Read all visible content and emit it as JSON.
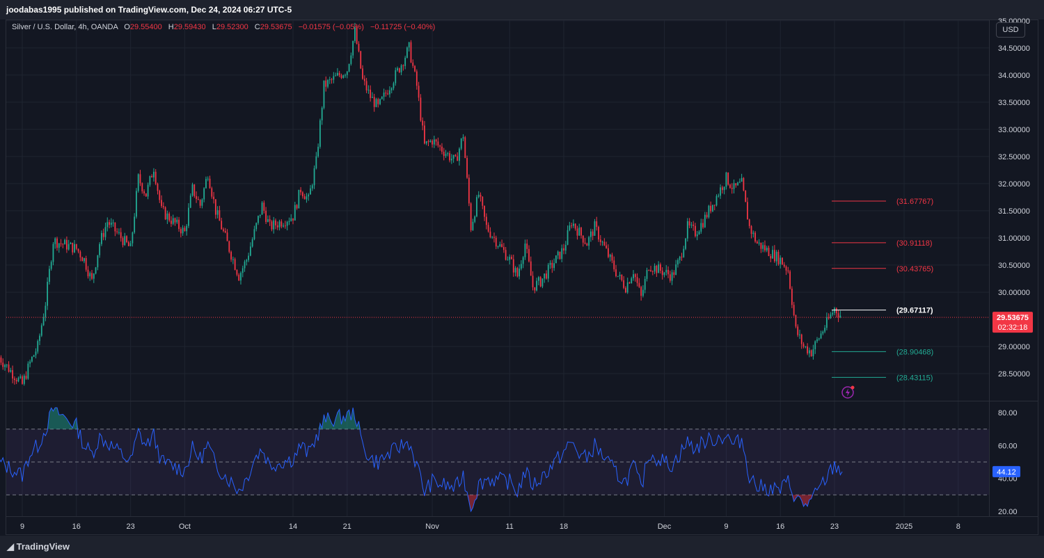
{
  "header": {
    "publisher": "joodabas1995 published on TradingView.com, Dec 24, 2024 06:27 UTC-5"
  },
  "legend": {
    "symbol": "Silver / U.S. Dollar, 4h, OANDA",
    "o_label": "O",
    "o_value": "29.55400",
    "h_label": "H",
    "h_value": "29.59430",
    "l_label": "L",
    "l_value": "29.52300",
    "c_label": "C",
    "c_value": "29.53675",
    "change": "−0.01575 (−0.05%)",
    "change2": "−0.11725 (−0.40%)"
  },
  "currency_button": "USD",
  "footer": {
    "brand": "TradingView"
  },
  "colors": {
    "up": "#22ab94",
    "down": "#f23645",
    "rsi": "#2962ff",
    "background": "#131722"
  },
  "chart_data": {
    "type": "candlestick",
    "price_axis": {
      "ticks": [
        "35.00000",
        "34.50000",
        "34.00000",
        "33.50000",
        "33.00000",
        "32.50000",
        "32.00000",
        "31.50000",
        "31.00000",
        "30.50000",
        "30.00000",
        "29.00000",
        "28.50000"
      ],
      "range": [
        28.0,
        35.1
      ]
    },
    "time_axis": {
      "ticks": [
        "9",
        "16",
        "23",
        "Oct",
        "14",
        "21",
        "Nov",
        "11",
        "18",
        "Dec",
        "9",
        "16",
        "23",
        "2025",
        "8"
      ]
    },
    "last_price": {
      "value": "29.53675",
      "countdown": "02:32:18"
    },
    "levels": [
      {
        "label": "(31.67767)",
        "value": 31.67767,
        "color": "#f23645"
      },
      {
        "label": "(30.91118)",
        "value": 30.91118,
        "color": "#f23645"
      },
      {
        "label": "(30.43765)",
        "value": 30.43765,
        "color": "#f23645"
      },
      {
        "label": "(29.67117)",
        "value": 29.67117,
        "color": "#ffffff"
      },
      {
        "label": "(28.90468)",
        "value": 28.90468,
        "color": "#22ab94"
      },
      {
        "label": "(28.43115)",
        "value": 28.43115,
        "color": "#22ab94"
      }
    ],
    "price_path": [
      [
        "Sep 6",
        28.8
      ],
      [
        "Sep 9",
        28.3
      ],
      [
        "Sep 10",
        28.7
      ],
      [
        "Sep 11",
        29.0
      ],
      [
        "Sep 12",
        29.8
      ],
      [
        "Sep 13",
        30.95
      ],
      [
        "Sep 16",
        30.8
      ],
      [
        "Sep 17",
        30.6
      ],
      [
        "Sep 18",
        30.2
      ],
      [
        "Sep 19",
        30.9
      ],
      [
        "Sep 20",
        31.3
      ],
      [
        "Sep 23",
        30.8
      ],
      [
        "Sep 24",
        32.1
      ],
      [
        "Sep 25",
        31.8
      ],
      [
        "Sep 26",
        32.3
      ],
      [
        "Sep 27",
        31.5
      ],
      [
        "Sep 30",
        31.1
      ],
      [
        "Oct 1",
        31.9
      ],
      [
        "Oct 2",
        31.6
      ],
      [
        "Oct 3",
        32.2
      ],
      [
        "Oct 4",
        31.5
      ],
      [
        "Oct 7",
        30.3
      ],
      [
        "Oct 8",
        30.6
      ],
      [
        "Oct 9",
        31.1
      ],
      [
        "Oct 10",
        31.6
      ],
      [
        "Oct 11",
        31.2
      ],
      [
        "Oct 14",
        31.4
      ],
      [
        "Oct 15",
        31.9
      ],
      [
        "Oct 16",
        31.7
      ],
      [
        "Oct 17",
        32.4
      ],
      [
        "Oct 18",
        33.8
      ],
      [
        "Oct 21",
        34.1
      ],
      [
        "Oct 22",
        34.8
      ],
      [
        "Oct 23",
        33.9
      ],
      [
        "Oct 24",
        33.6
      ],
      [
        "Oct 25",
        33.4
      ],
      [
        "Oct 28",
        34.2
      ],
      [
        "Oct 29",
        34.5
      ],
      [
        "Oct 30",
        33.8
      ],
      [
        "Oct 31",
        32.7
      ],
      [
        "Nov 1",
        32.8
      ],
      [
        "Nov 4",
        32.4
      ],
      [
        "Nov 5",
        32.9
      ],
      [
        "Nov 6",
        31.2
      ],
      [
        "Nov 7",
        31.8
      ],
      [
        "Nov 8",
        31.2
      ],
      [
        "Nov 11",
        30.6
      ],
      [
        "Nov 12",
        30.3
      ],
      [
        "Nov 13",
        30.9
      ],
      [
        "Nov 14",
        30.1
      ],
      [
        "Nov 15",
        30.2
      ],
      [
        "Nov 18",
        30.8
      ],
      [
        "Nov 19",
        31.3
      ],
      [
        "Nov 20",
        31.1
      ],
      [
        "Nov 21",
        30.9
      ],
      [
        "Nov 22",
        31.2
      ],
      [
        "Nov 25",
        30.3
      ],
      [
        "Nov 26",
        30.1
      ],
      [
        "Nov 27",
        30.4
      ],
      [
        "Nov 28",
        29.9
      ],
      [
        "Nov 29",
        30.5
      ],
      [
        "Dec 2",
        30.3
      ],
      [
        "Dec 3",
        30.6
      ],
      [
        "Dec 4",
        31.2
      ],
      [
        "Dec 5",
        31.1
      ],
      [
        "Dec 6",
        31.3
      ],
      [
        "Dec 9",
        32.1
      ],
      [
        "Dec 10",
        31.9
      ],
      [
        "Dec 11",
        32.0
      ],
      [
        "Dec 12",
        31.2
      ],
      [
        "Dec 13",
        30.9
      ],
      [
        "Dec 16",
        30.6
      ],
      [
        "Dec 17",
        30.4
      ],
      [
        "Dec 18",
        29.3
      ],
      [
        "Dec 19",
        29.0
      ],
      [
        "Dec 20",
        28.9
      ],
      [
        "Dec 23",
        29.7
      ],
      [
        "Dec 24",
        29.54
      ]
    ],
    "rsi": {
      "ticks": [
        "80.00",
        "60.00",
        "40.00",
        "20.00"
      ],
      "range": [
        17,
        83
      ],
      "bands": [
        30,
        50,
        70
      ],
      "current": "44.12",
      "values": [
        [
          "Sep 6",
          50
        ],
        [
          "Sep 9",
          42
        ],
        [
          "Sep 10",
          55
        ],
        [
          "Sep 11",
          60
        ],
        [
          "Sep 12",
          70
        ],
        [
          "Sep 13",
          82
        ],
        [
          "Sep 16",
          72
        ],
        [
          "Sep 17",
          60
        ],
        [
          "Sep 18",
          55
        ],
        [
          "Sep 19",
          65
        ],
        [
          "Sep 20",
          62
        ],
        [
          "Sep 23",
          50
        ],
        [
          "Sep 24",
          68
        ],
        [
          "Sep 25",
          60
        ],
        [
          "Sep 26",
          66
        ],
        [
          "Sep 27",
          50
        ],
        [
          "Sep 30",
          45
        ],
        [
          "Oct 1",
          58
        ],
        [
          "Oct 2",
          52
        ],
        [
          "Oct 3",
          60
        ],
        [
          "Oct 4",
          48
        ],
        [
          "Oct 7",
          33
        ],
        [
          "Oct 8",
          40
        ],
        [
          "Oct 9",
          52
        ],
        [
          "Oct 10",
          58
        ],
        [
          "Oct 11",
          48
        ],
        [
          "Oct 14",
          52
        ],
        [
          "Oct 15",
          60
        ],
        [
          "Oct 16",
          55
        ],
        [
          "Oct 17",
          65
        ],
        [
          "Oct 18",
          75
        ],
        [
          "Oct 21",
          78
        ],
        [
          "Oct 22",
          80
        ],
        [
          "Oct 23",
          60
        ],
        [
          "Oct 24",
          52
        ],
        [
          "Oct 25",
          50
        ],
        [
          "Oct 28",
          60
        ],
        [
          "Oct 29",
          62
        ],
        [
          "Oct 30",
          48
        ],
        [
          "Oct 31",
          32
        ],
        [
          "Nov 1",
          38
        ],
        [
          "Nov 4",
          34
        ],
        [
          "Nov 5",
          42
        ],
        [
          "Nov 6",
          22
        ],
        [
          "Nov 7",
          36
        ],
        [
          "Nov 8",
          40
        ],
        [
          "Nov 11",
          38
        ],
        [
          "Nov 12",
          32
        ],
        [
          "Nov 13",
          44
        ],
        [
          "Nov 14",
          36
        ],
        [
          "Nov 15",
          40
        ],
        [
          "Nov 18",
          56
        ],
        [
          "Nov 19",
          62
        ],
        [
          "Nov 20",
          55
        ],
        [
          "Nov 21",
          52
        ],
        [
          "Nov 22",
          60
        ],
        [
          "Nov 25",
          42
        ],
        [
          "Nov 26",
          38
        ],
        [
          "Nov 27",
          48
        ],
        [
          "Nov 28",
          34
        ],
        [
          "Nov 29",
          55
        ],
        [
          "Dec 2",
          48
        ],
        [
          "Dec 3",
          55
        ],
        [
          "Dec 4",
          62
        ],
        [
          "Dec 5",
          58
        ],
        [
          "Dec 6",
          62
        ],
        [
          "Dec 9",
          66
        ],
        [
          "Dec 10",
          60
        ],
        [
          "Dec 11",
          64
        ],
        [
          "Dec 12",
          42
        ],
        [
          "Dec 13",
          35
        ],
        [
          "Dec 16",
          33
        ],
        [
          "Dec 17",
          38
        ],
        [
          "Dec 18",
          28
        ],
        [
          "Dec 19",
          24
        ],
        [
          "Dec 20",
          26
        ],
        [
          "Dec 23",
          48
        ],
        [
          "Dec 24",
          44.12
        ]
      ]
    }
  }
}
